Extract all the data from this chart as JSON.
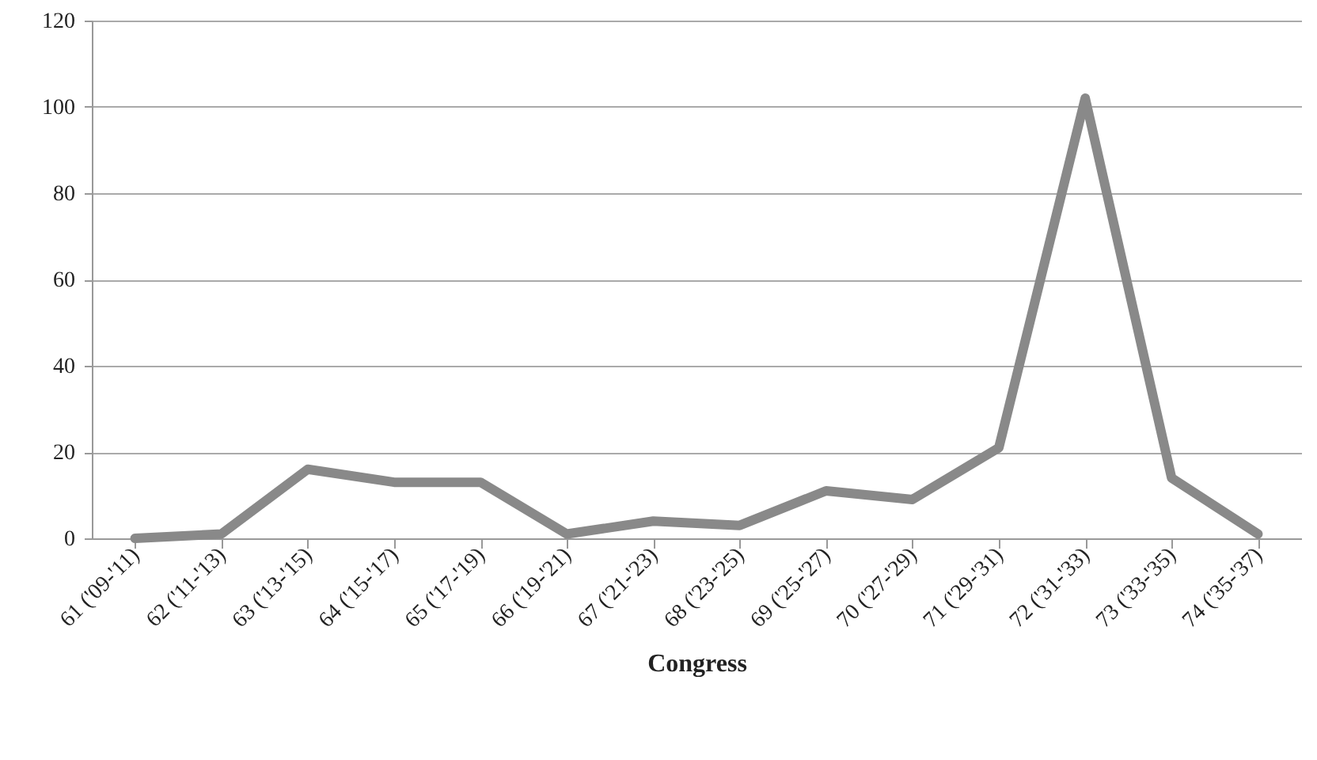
{
  "chart_data": {
    "type": "line",
    "xlabel": "Congress",
    "categories": [
      "61 ('09-'11)",
      "62 ('11-'13)",
      "63 ('13-'15)",
      "64 ('15-'17)",
      "65 ('17-'19)",
      "66 ('19-'21)",
      "67 ('21-'23)",
      "68 ('23-'25)",
      "69 ('25-'27)",
      "70 ('27-'29)",
      "71 ('29-'31)",
      "72 ('31-'33)",
      "73 ('33-'35)",
      "74 ('35-'37)"
    ],
    "series": [
      {
        "color": "#898989",
        "values": [
          0,
          1,
          16,
          13,
          13,
          1,
          4,
          3,
          11,
          9,
          21,
          102,
          14,
          1
        ]
      }
    ],
    "ylim": [
      0,
      120
    ],
    "yticks": [
      0,
      20,
      40,
      60,
      80,
      100,
      120
    ],
    "grid": "y",
    "marker": "none",
    "line_style": "solid"
  }
}
